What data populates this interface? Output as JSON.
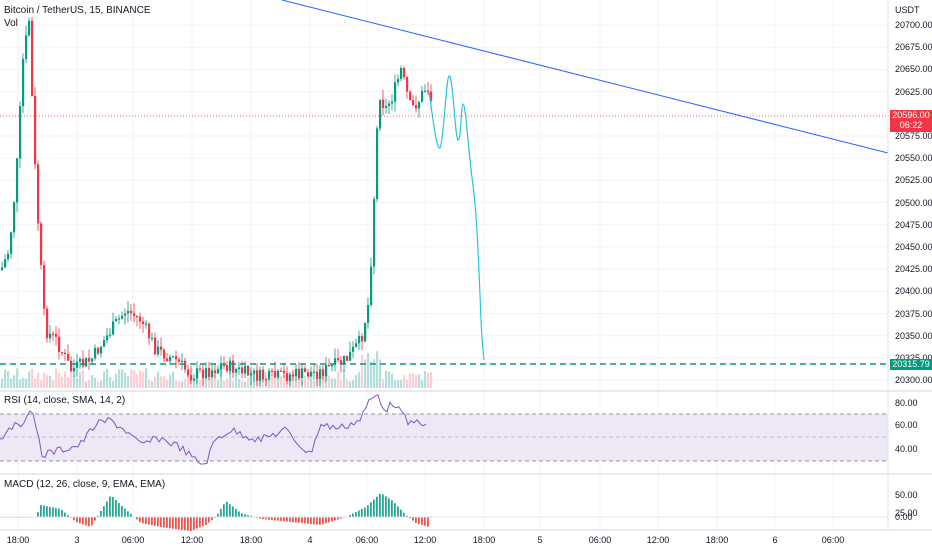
{
  "header": {
    "symbol_title": "Bitcoin / TetherUS, 15, BINANCE",
    "volume_label": "Vol",
    "currency": "USDT"
  },
  "price_axis": {
    "ticks": [
      "20700.00",
      "20675.00",
      "20650.00",
      "20625.00",
      "20600.00",
      "20575.00",
      "20550.00",
      "20525.00",
      "20500.00",
      "20475.00",
      "20450.00",
      "20425.00",
      "20400.00",
      "20375.00",
      "20350.00",
      "20325.00",
      "20300.00"
    ]
  },
  "current_price": {
    "value": "20596.00",
    "countdown": "06:22",
    "color": "#f23645"
  },
  "support_price": {
    "value": "20315.79",
    "color": "#089981"
  },
  "rsi": {
    "title": "RSI (14, close, SMA, 14, 2)",
    "ticks": [
      "80.00",
      "60.00",
      "40.00"
    ],
    "color": "#7e57c2",
    "band_color": "#ede7f6"
  },
  "macd": {
    "title": "MACD (12, 26, close, 9, EMA, EMA)",
    "ticks": [
      "50.00",
      "25.00",
      "0.00"
    ]
  },
  "time_axis": {
    "labels": [
      "18:00",
      "3",
      "06:00",
      "12:00",
      "18:00",
      "4",
      "06:00",
      "12:00",
      "18:00",
      "5",
      "06:00",
      "12:00",
      "18:00",
      "6",
      "06:00"
    ]
  },
  "colors": {
    "up": "#089981",
    "down": "#f23645",
    "trendline": "#2962ff",
    "projection": "#26c6da"
  }
}
